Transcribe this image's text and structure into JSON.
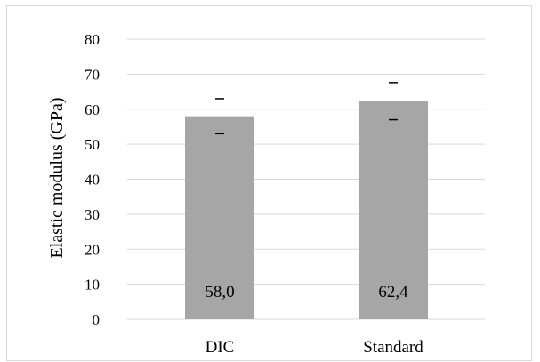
{
  "chart_data": {
    "type": "bar",
    "title": "",
    "xlabel": "",
    "ylabel": "Elastic modulus (GPa)",
    "categories": [
      "DIC",
      "Standard"
    ],
    "series": [
      {
        "values": [
          58.0,
          62.4
        ],
        "error_low": [
          53.0,
          57.0
        ],
        "error_high": [
          63.0,
          67.6
        ],
        "data_labels": [
          "58,0",
          "62,4"
        ]
      }
    ],
    "ylim": [
      0,
      80
    ],
    "yticks": [
      "0",
      "10",
      "20",
      "30",
      "40",
      "50",
      "60",
      "70",
      "80"
    ],
    "grid": true,
    "legend": "none",
    "colors": {
      "bar": "#a6a6a6",
      "grid": "#d9d9d9",
      "text": "#000000"
    }
  }
}
